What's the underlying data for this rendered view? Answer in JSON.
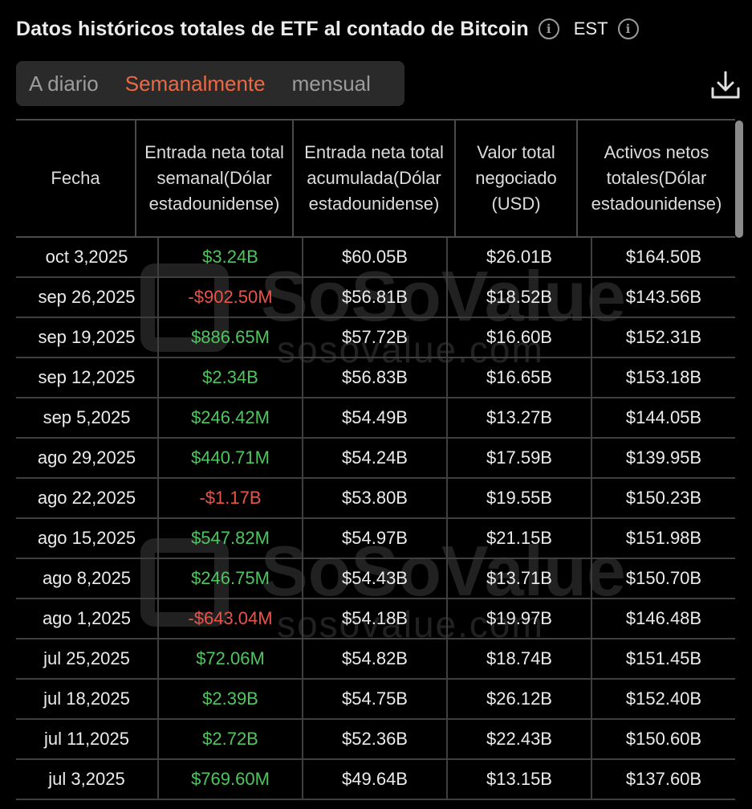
{
  "header": {
    "title": "Datos históricos totales de ETF al contado de Bitcoin",
    "info_icon": "info-icon",
    "timezone": "EST"
  },
  "tabs": [
    {
      "label": "A diario",
      "active": false
    },
    {
      "label": "Semanalmente",
      "active": true
    },
    {
      "label": "mensual",
      "active": false
    }
  ],
  "colors": {
    "accent": "#ea6a44",
    "positive": "#4fc45f",
    "negative": "#e9544a",
    "background": "#000000"
  },
  "watermark": {
    "brand": "SoSoValue",
    "url": "sosovalue.com"
  },
  "table": {
    "columns": [
      "Fecha",
      "Entrada neta total semanal(Dólar estadounidense)",
      "Entrada neta total acumulada(Dólar estadounidense)",
      "Valor total negociado (USD)",
      "Activos netos totales(Dólar estadounidense)"
    ],
    "rows": [
      {
        "date": "oct 3,2025",
        "weekly": "$3.24B",
        "dir": "pos",
        "cumulative": "$60.05B",
        "traded": "$26.01B",
        "assets": "$164.50B"
      },
      {
        "date": "sep 26,2025",
        "weekly": "-$902.50M",
        "dir": "neg",
        "cumulative": "$56.81B",
        "traded": "$18.52B",
        "assets": "$143.56B"
      },
      {
        "date": "sep 19,2025",
        "weekly": "$886.65M",
        "dir": "pos",
        "cumulative": "$57.72B",
        "traded": "$16.60B",
        "assets": "$152.31B"
      },
      {
        "date": "sep 12,2025",
        "weekly": "$2.34B",
        "dir": "pos",
        "cumulative": "$56.83B",
        "traded": "$16.65B",
        "assets": "$153.18B"
      },
      {
        "date": "sep 5,2025",
        "weekly": "$246.42M",
        "dir": "pos",
        "cumulative": "$54.49B",
        "traded": "$13.27B",
        "assets": "$144.05B"
      },
      {
        "date": "ago 29,2025",
        "weekly": "$440.71M",
        "dir": "pos",
        "cumulative": "$54.24B",
        "traded": "$17.59B",
        "assets": "$139.95B"
      },
      {
        "date": "ago 22,2025",
        "weekly": "-$1.17B",
        "dir": "neg",
        "cumulative": "$53.80B",
        "traded": "$19.55B",
        "assets": "$150.23B"
      },
      {
        "date": "ago 15,2025",
        "weekly": "$547.82M",
        "dir": "pos",
        "cumulative": "$54.97B",
        "traded": "$21.15B",
        "assets": "$151.98B"
      },
      {
        "date": "ago 8,2025",
        "weekly": "$246.75M",
        "dir": "pos",
        "cumulative": "$54.43B",
        "traded": "$13.71B",
        "assets": "$150.70B"
      },
      {
        "date": "ago 1,2025",
        "weekly": "-$643.04M",
        "dir": "neg",
        "cumulative": "$54.18B",
        "traded": "$19.97B",
        "assets": "$146.48B"
      },
      {
        "date": "jul 25,2025",
        "weekly": "$72.06M",
        "dir": "pos",
        "cumulative": "$54.82B",
        "traded": "$18.74B",
        "assets": "$151.45B"
      },
      {
        "date": "jul 18,2025",
        "weekly": "$2.39B",
        "dir": "pos",
        "cumulative": "$54.75B",
        "traded": "$26.12B",
        "assets": "$152.40B"
      },
      {
        "date": "jul 11,2025",
        "weekly": "$2.72B",
        "dir": "pos",
        "cumulative": "$52.36B",
        "traded": "$22.43B",
        "assets": "$150.60B"
      },
      {
        "date": "jul 3,2025",
        "weekly": "$769.60M",
        "dir": "pos",
        "cumulative": "$49.64B",
        "traded": "$13.15B",
        "assets": "$137.60B"
      }
    ]
  }
}
